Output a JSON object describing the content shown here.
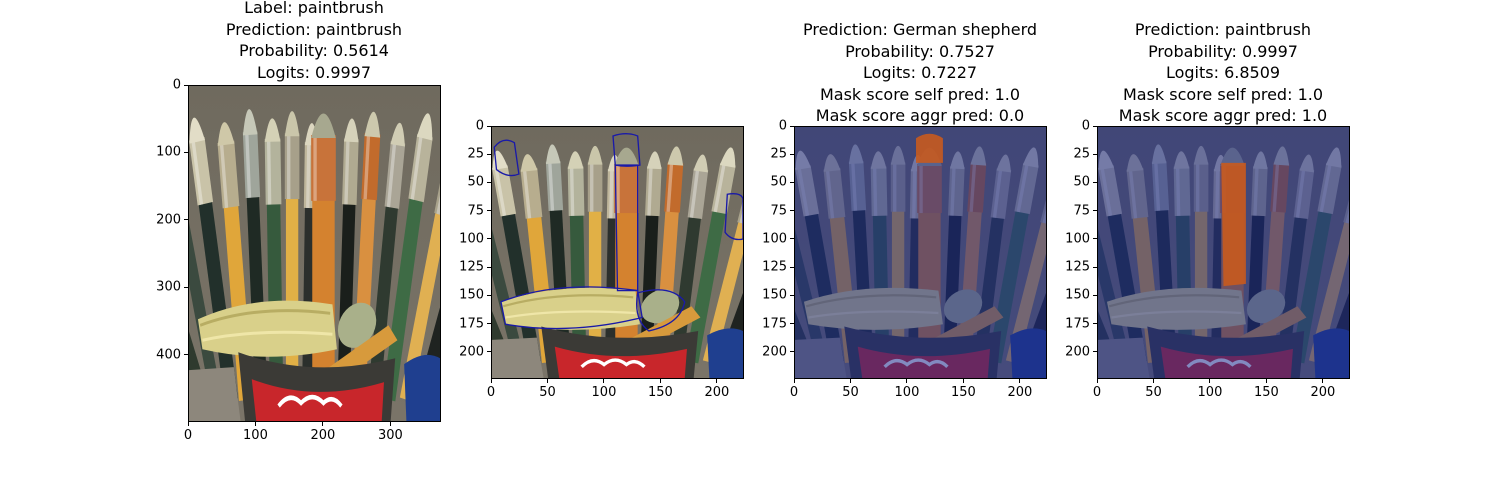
{
  "chart_data": [
    {
      "type": "image",
      "panel": "original",
      "title_lines": [
        "Label: paintbrush",
        "Prediction: paintbrush",
        "Probability: 0.5614",
        "Logits: 0.9997"
      ],
      "xlim": [
        0,
        375
      ],
      "ylim": [
        500,
        0
      ],
      "xticks": [
        0,
        100,
        200,
        300
      ],
      "yticks": [
        0,
        100,
        200,
        300,
        400
      ],
      "colors": {
        "tint": "none"
      }
    },
    {
      "type": "image",
      "panel": "segmented-contours",
      "title_lines": [],
      "xlim": [
        0,
        224
      ],
      "ylim": [
        224,
        0
      ],
      "xticks": [
        0,
        50,
        100,
        150,
        200
      ],
      "yticks": [
        0,
        25,
        50,
        75,
        100,
        125,
        150,
        175,
        200
      ],
      "colors": {
        "contour": "#1a1aa8"
      }
    },
    {
      "type": "image",
      "panel": "mask-german-shepherd",
      "title_lines": [
        "Prediction: German shepherd",
        "Probability: 0.7527",
        "Logits: 0.7227",
        "Mask score self pred: 1.0",
        "Mask score aggr pred: 0.0"
      ],
      "xlim": [
        0,
        224
      ],
      "ylim": [
        224,
        0
      ],
      "xticks": [
        0,
        50,
        100,
        150,
        200
      ],
      "yticks": [
        0,
        25,
        50,
        75,
        100,
        125,
        150,
        175,
        200
      ],
      "colors": {
        "tint": "#1c2a8c",
        "mask": "#c85a1e"
      }
    },
    {
      "type": "image",
      "panel": "mask-paintbrush",
      "title_lines": [
        "Prediction: paintbrush",
        "Probability: 0.9997",
        "Logits: 6.8509",
        "Mask score self pred: 1.0",
        "Mask score aggr pred: 1.0"
      ],
      "xlim": [
        0,
        224
      ],
      "ylim": [
        224,
        0
      ],
      "xticks": [
        0,
        50,
        100,
        150,
        200
      ],
      "yticks": [
        0,
        25,
        50,
        75,
        100,
        125,
        150,
        175,
        200
      ],
      "colors": {
        "tint": "#1c2a8c",
        "mask": "#c85a1e"
      }
    }
  ]
}
